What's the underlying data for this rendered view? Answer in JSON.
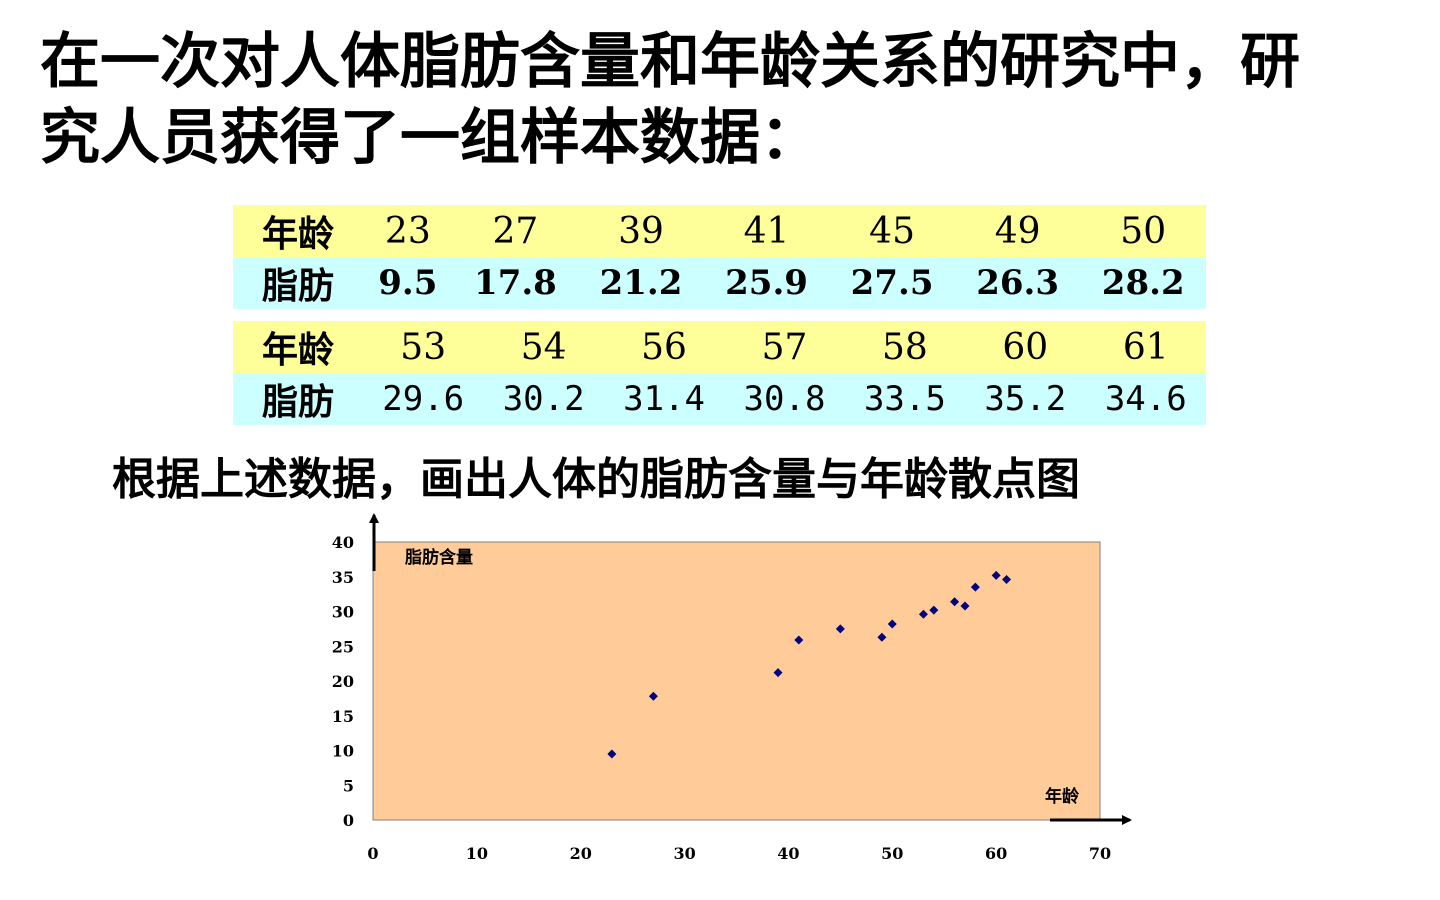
{
  "heading": {
    "line1": "在一次对人体脂肪含量和年龄关系的研究中，研",
    "line2": "究人员获得了一组样本数据："
  },
  "table": {
    "age_label": "年龄",
    "fat_label": "脂肪",
    "group1": {
      "ages": [
        "23",
        "27",
        "39",
        "41",
        "45",
        "49",
        "50"
      ],
      "fats": [
        "9.5",
        "17.8",
        "21.2",
        "25.9",
        "27.5",
        "26.3",
        "28.2"
      ]
    },
    "group2": {
      "ages": [
        "53",
        "54",
        "56",
        "57",
        "58",
        "60",
        "61"
      ],
      "fats": [
        "29.6",
        "30.2",
        "31.4",
        "30.8",
        "33.5",
        "35.2",
        "34.6"
      ]
    }
  },
  "caption": "根据上述数据，画出人体的脂肪含量与年龄散点图",
  "chart_data": {
    "type": "scatter",
    "ylabel": "脂肪含量",
    "xlabel": "年龄",
    "xlim": [
      0,
      70
    ],
    "ylim": [
      0,
      40
    ],
    "xticks": [
      "0",
      "10",
      "20",
      "30",
      "40",
      "50",
      "60",
      "70"
    ],
    "yticks": [
      "0",
      "5",
      "10",
      "15",
      "20",
      "25",
      "30",
      "35",
      "40"
    ],
    "grid": false,
    "colors": {
      "plot_bg": "#ffcc99",
      "point": "#000080"
    },
    "points": [
      {
        "x": 23,
        "y": 9.5
      },
      {
        "x": 27,
        "y": 17.8
      },
      {
        "x": 39,
        "y": 21.2
      },
      {
        "x": 41,
        "y": 25.9
      },
      {
        "x": 45,
        "y": 27.5
      },
      {
        "x": 49,
        "y": 26.3
      },
      {
        "x": 50,
        "y": 28.2
      },
      {
        "x": 53,
        "y": 29.6
      },
      {
        "x": 54,
        "y": 30.2
      },
      {
        "x": 56,
        "y": 31.4
      },
      {
        "x": 57,
        "y": 30.8
      },
      {
        "x": 58,
        "y": 33.5
      },
      {
        "x": 60,
        "y": 35.2
      },
      {
        "x": 61,
        "y": 34.6
      }
    ]
  }
}
